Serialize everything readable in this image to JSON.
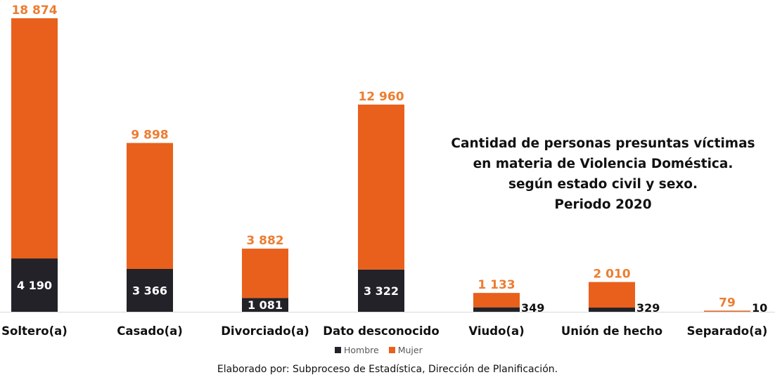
{
  "chart_data": {
    "type": "bar",
    "stacked": true,
    "title": "Cantidad de personas presuntas víctimas en materia de Violencia Doméstica. según estado civil y sexo. Periodo 2020",
    "title_lines": [
      "Cantidad de personas presuntas víctimas",
      "en materia de Violencia Doméstica.",
      "según estado civil y sexo.",
      "Periodo 2020"
    ],
    "categories": [
      "Soltero(a)",
      "Casado(a)",
      "Divorciado(a)",
      "Dato desconocido",
      "Viudo(a)",
      "Unión de hecho",
      "Separado(a)"
    ],
    "series": [
      {
        "name": "Hombre",
        "color": "#232228",
        "values": [
          4190,
          3366,
          1081,
          3322,
          349,
          329,
          10
        ],
        "labels": [
          "4 190",
          "3 366",
          "1 081",
          "3 322",
          "349",
          "329",
          "10"
        ]
      },
      {
        "name": "Mujer",
        "color": "#E8601C",
        "values": [
          18874,
          9898,
          3882,
          12960,
          1133,
          2010,
          79
        ],
        "labels": [
          "18 874",
          "9 898",
          "3 882",
          "12 960",
          "1 133",
          "2 010",
          "79"
        ]
      }
    ],
    "xlabel": "",
    "ylabel": "",
    "grid": false,
    "legend": "bottom",
    "label_color_mujer": "#ED7D31"
  },
  "legend": {
    "hombre": "Hombre",
    "mujer": "Mujer"
  },
  "credit": "Elaborado por: Subproceso de Estadística, Dirección de Planificación."
}
